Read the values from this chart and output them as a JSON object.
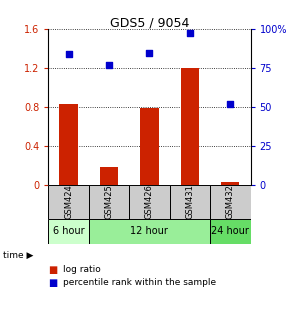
{
  "title": "GDS5 / 9054",
  "samples": [
    "GSM424",
    "GSM425",
    "GSM426",
    "GSM431",
    "GSM432"
  ],
  "log_ratio": [
    0.83,
    0.18,
    0.79,
    1.2,
    0.03
  ],
  "percentile_rank": [
    84,
    77,
    85,
    98,
    52
  ],
  "bar_color": "#cc2200",
  "dot_color": "#0000cc",
  "left_yticks": [
    0,
    0.4,
    0.8,
    1.2,
    1.6
  ],
  "left_ylabels": [
    "0",
    "0.4",
    "0.8",
    "1.2",
    "1.6"
  ],
  "right_yticks": [
    0,
    25,
    50,
    75,
    100
  ],
  "right_ylabels": [
    "0",
    "25",
    "50",
    "75",
    "100%"
  ],
  "ylim_left": [
    0,
    1.6
  ],
  "ylim_right": [
    0,
    100
  ],
  "time_labels": [
    "6 hour",
    "12 hour",
    "24 hour"
  ],
  "time_colors": [
    "#ccffcc",
    "#99ee99",
    "#66dd66"
  ],
  "legend_bar_label": "log ratio",
  "legend_dot_label": "percentile rank within the sample",
  "bg_color_sample": "#cccccc",
  "title_fontsize": 9
}
